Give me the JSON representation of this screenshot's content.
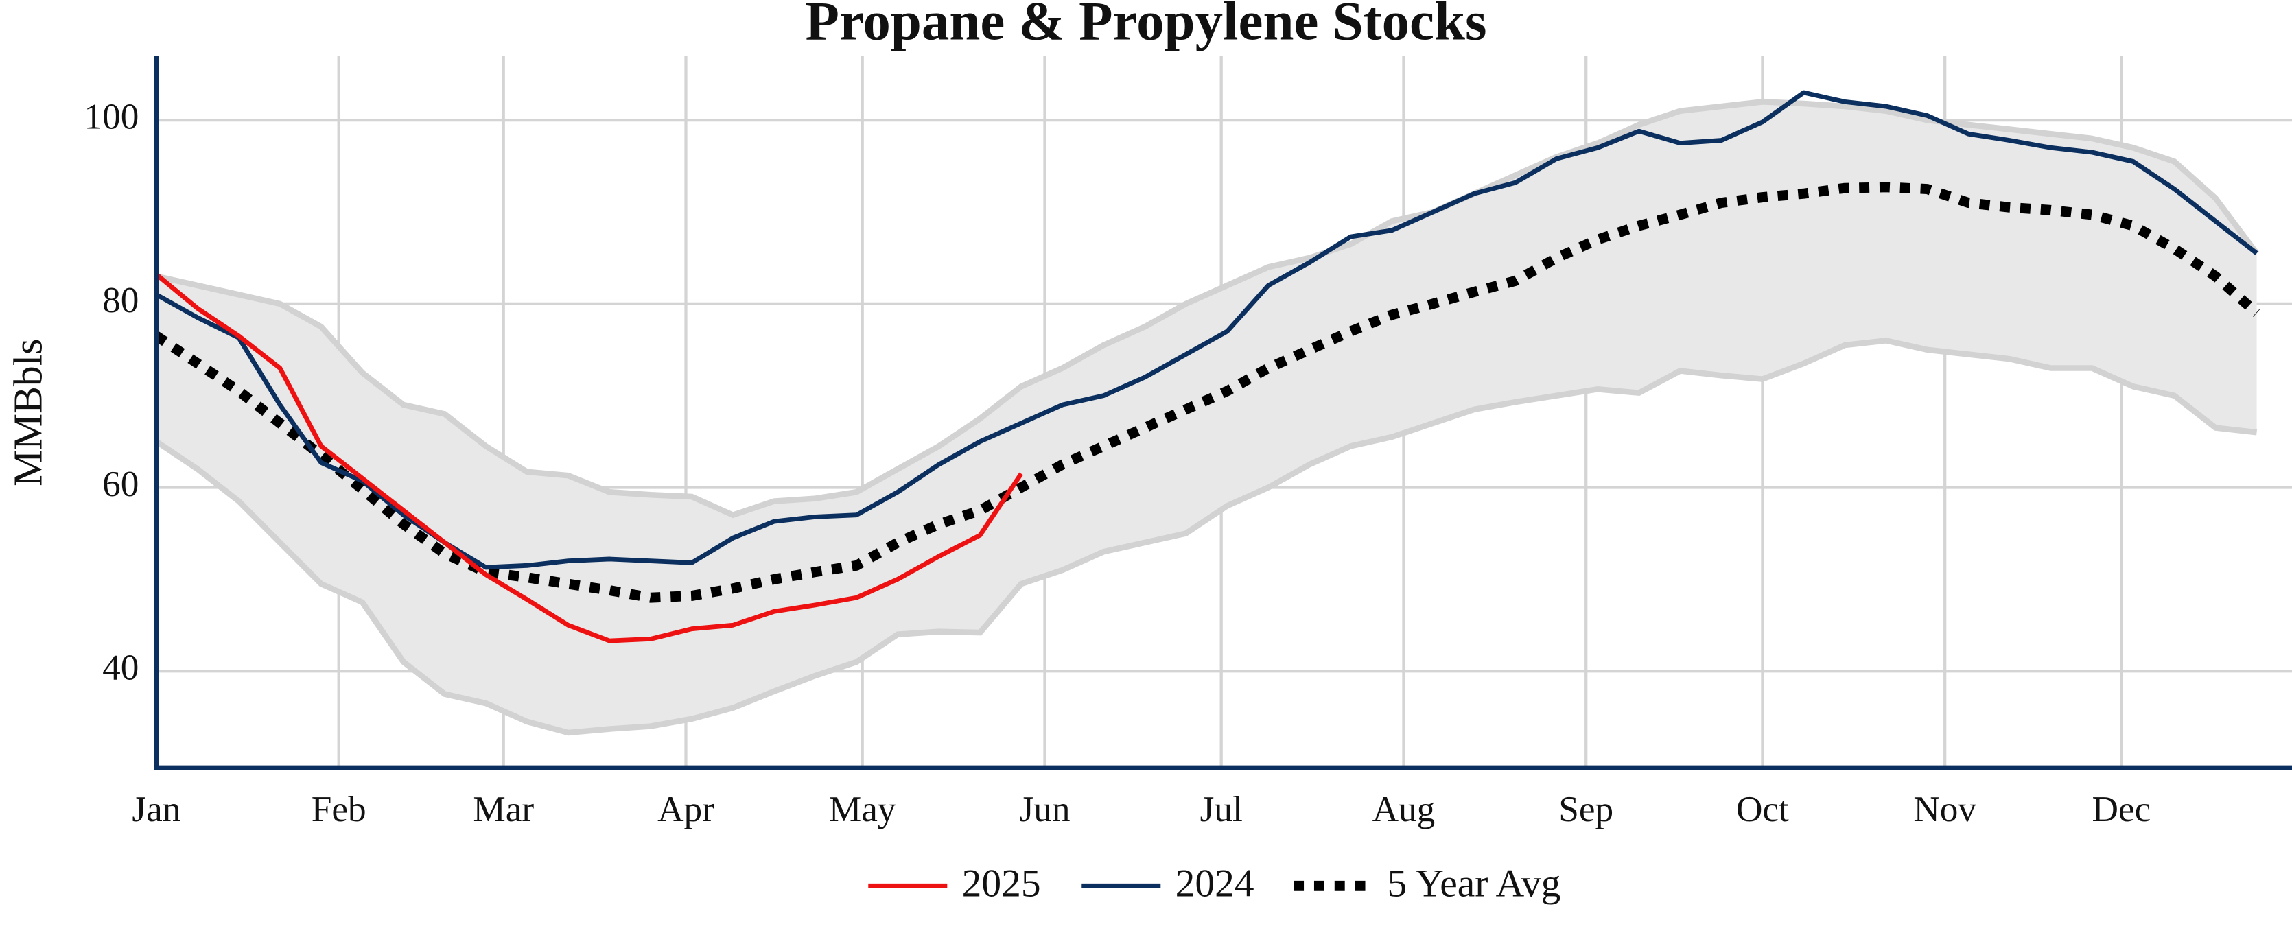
{
  "chart_data": {
    "type": "line",
    "title": "Propane & Propylene Stocks",
    "y_label": "MMBbls",
    "x": [
      1,
      8,
      15,
      22,
      29,
      36,
      43,
      50,
      57,
      64,
      71,
      78,
      85,
      92,
      99,
      106,
      113,
      120,
      127,
      134,
      141,
      148,
      155,
      162,
      169,
      176,
      183,
      190,
      197,
      204,
      211,
      218,
      225,
      232,
      239,
      246,
      253,
      260,
      267,
      274,
      281,
      288,
      295,
      302,
      309,
      316,
      323,
      330,
      337,
      344,
      351,
      358
    ],
    "xlim": [
      1,
      364
    ],
    "xticks": [
      {
        "value": 1,
        "label": "Jan"
      },
      {
        "value": 32,
        "label": "Feb"
      },
      {
        "value": 60,
        "label": "Mar"
      },
      {
        "value": 91,
        "label": "Apr"
      },
      {
        "value": 121,
        "label": "May"
      },
      {
        "value": 152,
        "label": "Jun"
      },
      {
        "value": 182,
        "label": "Jul"
      },
      {
        "value": 213,
        "label": "Aug"
      },
      {
        "value": 244,
        "label": "Sep"
      },
      {
        "value": 274,
        "label": "Oct"
      },
      {
        "value": 305,
        "label": "Nov"
      },
      {
        "value": 335,
        "label": "Dec"
      }
    ],
    "ylim": [
      29.5,
      107
    ],
    "yticks": [
      40,
      60,
      80,
      100
    ],
    "grid": true,
    "series": [
      {
        "name": "2025",
        "color": "#ee1111",
        "dash": "solid",
        "values": [
          83.2,
          79.5,
          76.5,
          73,
          64.5,
          61,
          57.5,
          54,
          50.5,
          47.8,
          45,
          43.3,
          43.5,
          44.6,
          45,
          46.5,
          47.2,
          48,
          50,
          52.5,
          54.8,
          61.5,
          null,
          null,
          null,
          null,
          null,
          null,
          null,
          null,
          null,
          null,
          null,
          null,
          null,
          null,
          null,
          null,
          null,
          null,
          null,
          null,
          null,
          null,
          null,
          null,
          null,
          null,
          null,
          null,
          null,
          null
        ]
      },
      {
        "name": "2024",
        "color": "#0b2f5e",
        "dash": "solid",
        "values": [
          81,
          78.5,
          76.3,
          69,
          62.7,
          60.7,
          57,
          54,
          51.3,
          51.5,
          52,
          52.2,
          52,
          51.8,
          54.5,
          56.3,
          56.8,
          57,
          59.5,
          62.5,
          65,
          67,
          69,
          70,
          72,
          74.5,
          77,
          82,
          84.5,
          87.3,
          88,
          90,
          92,
          93.2,
          95.8,
          97,
          98.8,
          97.5,
          97.8,
          99.8,
          103,
          102,
          101.5,
          100.5,
          98.5,
          97.8,
          97,
          96.5,
          95.5,
          92.5,
          89,
          85.5
        ]
      },
      {
        "name": "5 Year Avg",
        "color": "#000000",
        "dash": "dotted",
        "values": [
          76.5,
          73.5,
          70.5,
          67,
          63.5,
          59.8,
          56,
          52.8,
          50.8,
          50.2,
          49.5,
          48.8,
          48,
          48.2,
          49,
          50,
          50.8,
          51.5,
          54,
          56,
          57.5,
          60,
          62.5,
          64.5,
          66.5,
          68.5,
          70.5,
          73,
          75,
          77,
          78.8,
          80,
          81.3,
          82.5,
          85,
          87,
          88.5,
          89.7,
          91,
          91.6,
          92,
          92.6,
          92.7,
          92.5,
          91,
          90.5,
          90.2,
          89.7,
          88.5,
          86,
          83,
          79
        ]
      }
    ],
    "band": {
      "fill": "#e8e8e8",
      "edge": "#d2d2d2",
      "upper": [
        83,
        82,
        81,
        80,
        77.5,
        72.5,
        69,
        68,
        64.5,
        61.7,
        61.3,
        59.5,
        59.2,
        59,
        57,
        58.5,
        58.8,
        59.5,
        62,
        64.5,
        67.5,
        71,
        73,
        75.5,
        77.5,
        80,
        82,
        84,
        85,
        86.5,
        89,
        90,
        92,
        94,
        96,
        97.5,
        99.5,
        101,
        101.5,
        102,
        101.8,
        101.5,
        101,
        100,
        99.5,
        99,
        98.5,
        98,
        97,
        95.5,
        91.5,
        85.5
      ],
      "lower": [
        65,
        62,
        58.5,
        54,
        49.5,
        47.5,
        41,
        37.5,
        36.5,
        34.5,
        33.3,
        33.7,
        34,
        34.8,
        36,
        37.8,
        39.5,
        41,
        44,
        44.3,
        44.2,
        49.5,
        51,
        53,
        54,
        55,
        58,
        60,
        62.5,
        64.5,
        65.5,
        67,
        68.5,
        69.3,
        70,
        70.7,
        70.3,
        72.7,
        72.2,
        71.8,
        73.5,
        75.5,
        76,
        75,
        74.5,
        74,
        73,
        73,
        71,
        70,
        66.5,
        66
      ]
    }
  }
}
